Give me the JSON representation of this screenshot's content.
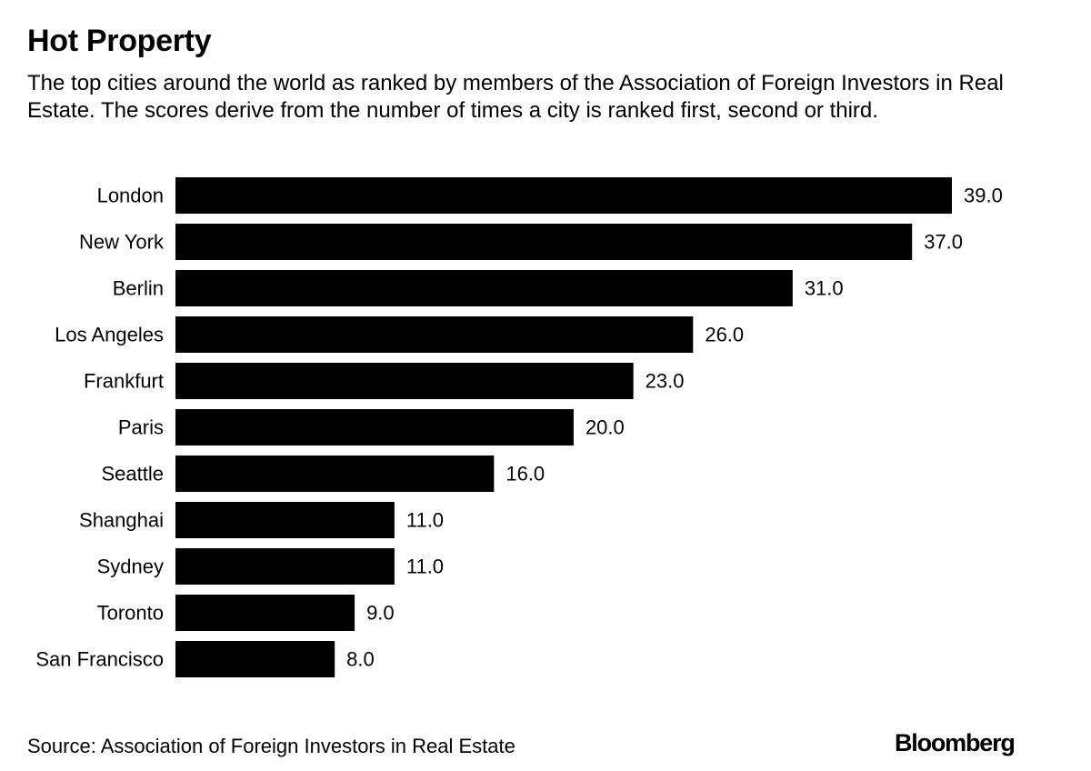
{
  "title": "Hot Property",
  "subtitle": "The top cities around the world as ranked by members of the Association of Foreign Investors in Real Estate. The scores derive from the number of times a city is ranked first, second or third.",
  "source": "Source: Association of Foreign Investors in Real Estate",
  "brand": "Bloomberg",
  "colors": {
    "bar": "#000000",
    "text": "#000000",
    "background": "#ffffff"
  },
  "chart_data": {
    "type": "bar",
    "orientation": "horizontal",
    "categories": [
      "London",
      "New York",
      "Berlin",
      "Los Angeles",
      "Frankfurt",
      "Paris",
      "Seattle",
      "Shanghai",
      "Sydney",
      "Toronto",
      "San Francisco"
    ],
    "values": [
      39.0,
      37.0,
      31.0,
      26.0,
      23.0,
      20.0,
      16.0,
      11.0,
      11.0,
      9.0,
      8.0
    ],
    "value_labels": [
      "39.0",
      "37.0",
      "31.0",
      "26.0",
      "23.0",
      "20.0",
      "16.0",
      "11.0",
      "11.0",
      "9.0",
      "8.0"
    ],
    "xlim": [
      0,
      39
    ],
    "grid": false,
    "legend": "none"
  }
}
